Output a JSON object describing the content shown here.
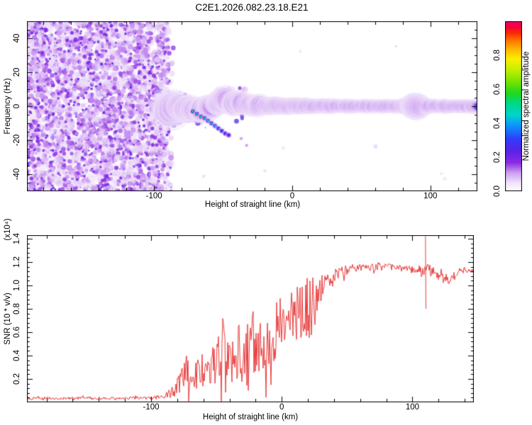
{
  "title": "C2E1.2026.082.23.18.E21",
  "colors": {
    "snr_line": "#e83c3c",
    "axis": "#000000",
    "background": "#ffffff",
    "noise_purple": "#8a2be2"
  },
  "chart_data": [
    {
      "id": "spectrogram",
      "type": "heatmap",
      "title": "C2E1.2026.082.23.18.E21",
      "xlabel": "Height of straight line (km)",
      "ylabel": "Frequency (Hz)",
      "x_range": [
        -192,
        134
      ],
      "y_range": [
        -50,
        50
      ],
      "x_ticks": [
        {
          "v": -100,
          "t": "-100"
        },
        {
          "v": 0,
          "t": "0"
        },
        {
          "v": 100,
          "t": "100"
        }
      ],
      "x_minor_step": 20,
      "y_ticks": [
        {
          "v": 40,
          "t": "40"
        },
        {
          "v": 20,
          "t": "20"
        },
        {
          "v": 0,
          "t": "0"
        },
        {
          "v": -20,
          "t": "-20"
        },
        {
          "v": -40,
          "t": "-40"
        }
      ],
      "y_minor_step": 5,
      "colorbar": {
        "label": "Normalized spectral amplitude",
        "range": [
          0,
          1
        ],
        "ticks": [
          {
            "v": 0.0,
            "t": "0.0"
          },
          {
            "v": 0.2,
            "t": "0.2"
          },
          {
            "v": 0.4,
            "t": "0.4"
          },
          {
            "v": 0.6,
            "t": "0.6"
          },
          {
            "v": 0.8,
            "t": "0.8"
          }
        ],
        "stops": [
          [
            0.0,
            "#ffffff"
          ],
          [
            0.05,
            "#f1e5fb"
          ],
          [
            0.11,
            "#cf9df2"
          ],
          [
            0.17,
            "#8a2be2"
          ],
          [
            0.24,
            "#5b21e8"
          ],
          [
            0.31,
            "#2f3ef8"
          ],
          [
            0.38,
            "#0f8cff"
          ],
          [
            0.45,
            "#00d4cf"
          ],
          [
            0.52,
            "#00d883"
          ],
          [
            0.58,
            "#21d81e"
          ],
          [
            0.65,
            "#7ce400"
          ],
          [
            0.72,
            "#c8ef00"
          ],
          [
            0.78,
            "#fced00"
          ],
          [
            0.84,
            "#ffb300"
          ],
          [
            0.89,
            "#ff7300"
          ],
          [
            0.93,
            "#fb2d00"
          ],
          [
            0.97,
            "#f5003e"
          ],
          [
            1.0,
            "#ef0070"
          ]
        ]
      },
      "noise_region": {
        "x_start_km": -192,
        "x_end_km": -90,
        "description": "uncorrelated purple speckle noise before signal acquisition"
      },
      "signal_band": {
        "center_freq_hz": 0,
        "keypoints": [
          [
            -91,
            -1,
            6.5
          ],
          [
            -88,
            -2.5,
            7
          ],
          [
            -85,
            -1,
            6
          ],
          [
            -82,
            0,
            5.5
          ],
          [
            -79,
            -1,
            5
          ],
          [
            -76,
            -2,
            5
          ],
          [
            -73,
            -1.5,
            5
          ],
          [
            -70,
            -2,
            4.8
          ],
          [
            -67,
            -3,
            4.6
          ],
          [
            -64,
            -2,
            4.6
          ],
          [
            -61,
            -1,
            4.5
          ],
          [
            -58,
            -0.5,
            4.4
          ],
          [
            -55,
            1.5,
            4.4
          ],
          [
            -52,
            3,
            4.5
          ],
          [
            -49,
            4.5,
            4.6
          ],
          [
            -46,
            3,
            4.5
          ],
          [
            -43,
            1,
            4.4
          ],
          [
            -40,
            1.5,
            4.3
          ],
          [
            -37,
            2.5,
            4.4
          ],
          [
            -34,
            1,
            4.2
          ],
          [
            -31,
            0.5,
            4.1
          ],
          [
            -28,
            0,
            4
          ],
          [
            -25,
            1,
            3.9
          ],
          [
            -22,
            0,
            3.8
          ],
          [
            -19,
            0.5,
            3.7
          ],
          [
            -16,
            0,
            3.6
          ],
          [
            -13,
            0.5,
            3.5
          ],
          [
            -10,
            0,
            3.5
          ],
          [
            -7,
            0.3,
            3.4
          ],
          [
            -4,
            0,
            3.4
          ],
          [
            0,
            0.3,
            3.3
          ],
          [
            5,
            0,
            3.2
          ],
          [
            10,
            0.3,
            3.2
          ],
          [
            15,
            0,
            3.1
          ],
          [
            20,
            0.2,
            3
          ],
          [
            25,
            0,
            3
          ],
          [
            30,
            0,
            3
          ],
          [
            36,
            0.2,
            2.9
          ],
          [
            42,
            0,
            2.9
          ],
          [
            48,
            0,
            2.8
          ],
          [
            55,
            0.2,
            2.8
          ],
          [
            62,
            0,
            2.8
          ],
          [
            70,
            0,
            2.8
          ],
          [
            78,
            0,
            2.9
          ],
          [
            84,
            0.3,
            3.4
          ],
          [
            88,
            0,
            5.2
          ],
          [
            91,
            0,
            5.4
          ],
          [
            94,
            0,
            3.6
          ],
          [
            100,
            0,
            2.9
          ],
          [
            108,
            0,
            2.8
          ],
          [
            116,
            0,
            2.8
          ],
          [
            124,
            0,
            2.8
          ],
          [
            134,
            0,
            2.8
          ]
        ]
      },
      "descender": {
        "points": [
          [
            -72,
            -3,
            0.55
          ],
          [
            -69,
            -4.5,
            0.5
          ],
          [
            -66,
            -6,
            0.52
          ],
          [
            -63.5,
            -7,
            0.48
          ],
          [
            -61,
            -8.5,
            0.5
          ],
          [
            -58.5,
            -10,
            0.42
          ],
          [
            -56,
            -11.5,
            0.44
          ],
          [
            -53.5,
            -13,
            0.36
          ],
          [
            -51,
            -14.5,
            0.3
          ],
          [
            -48.5,
            -16,
            0.26
          ],
          [
            -46,
            -17,
            0.22
          ]
        ]
      },
      "faint_dots": [
        [
          -37,
          -19
        ],
        [
          -33,
          -23
        ]
      ],
      "cloud_above": {
        "center_km": -45,
        "center_hz": 8,
        "spread_km": 12,
        "spread_hz": 3
      }
    },
    {
      "id": "snr",
      "type": "line",
      "color": "#e83c3c",
      "xlabel": "Height of straight line (km)",
      "ylabel": "SNR (10 * v/v)",
      "ylabel_scale": "(x10⁴)",
      "x_range": [
        -195,
        147
      ],
      "y_range": [
        0,
        1.43
      ],
      "x_ticks": [
        {
          "v": -100,
          "t": "-100"
        },
        {
          "v": 0,
          "t": "0"
        },
        {
          "v": 100,
          "t": "100"
        }
      ],
      "x_minor_step": 20,
      "y_ticks": [
        {
          "v": 0.2,
          "t": "0.2"
        },
        {
          "v": 0.4,
          "t": "0.4"
        },
        {
          "v": 0.6,
          "t": "0.6"
        },
        {
          "v": 0.8,
          "t": "0.8"
        },
        {
          "v": 1.0,
          "t": "1.0"
        },
        {
          "v": 1.2,
          "t": "1.2"
        },
        {
          "v": 1.4,
          "t": "1.4"
        }
      ],
      "y_minor_step": 0.04,
      "envelope": [
        [
          -195,
          0.035,
          0.012
        ],
        [
          -130,
          0.035,
          0.012
        ],
        [
          -100,
          0.038,
          0.014
        ],
        [
          -92,
          0.045,
          0.02
        ],
        [
          -88,
          0.06,
          0.035
        ],
        [
          -84,
          0.09,
          0.05
        ],
        [
          -80,
          0.13,
          0.08
        ],
        [
          -77,
          0.2,
          0.12
        ],
        [
          -74,
          0.32,
          0.16
        ],
        [
          -71,
          0.24,
          0.14
        ],
        [
          -68,
          0.2,
          0.1
        ],
        [
          -65,
          0.24,
          0.14
        ],
        [
          -62,
          0.28,
          0.16
        ],
        [
          -59,
          0.24,
          0.12
        ],
        [
          -56,
          0.27,
          0.15
        ],
        [
          -53,
          0.3,
          0.17
        ],
        [
          -50,
          0.32,
          0.2
        ],
        [
          -47,
          0.36,
          0.26
        ],
        [
          -44,
          0.44,
          0.34
        ],
        [
          -41,
          0.32,
          0.18
        ],
        [
          -38,
          0.33,
          0.2
        ],
        [
          -35,
          0.36,
          0.24
        ],
        [
          -32,
          0.42,
          0.27
        ],
        [
          -29,
          0.38,
          0.22
        ],
        [
          -26,
          0.44,
          0.26
        ],
        [
          -23,
          0.42,
          0.22
        ],
        [
          -20,
          0.4,
          0.2
        ],
        [
          -17,
          0.44,
          0.24
        ],
        [
          -14,
          0.48,
          0.24
        ],
        [
          -11,
          0.5,
          0.23
        ],
        [
          -8,
          0.52,
          0.2
        ],
        [
          -5,
          0.56,
          0.2
        ],
        [
          -2,
          0.62,
          0.18
        ],
        [
          1,
          0.66,
          0.17
        ],
        [
          4,
          0.71,
          0.15
        ],
        [
          7,
          0.7,
          0.19
        ],
        [
          10,
          0.74,
          0.21
        ],
        [
          13,
          0.78,
          0.24
        ],
        [
          16,
          0.8,
          0.28
        ],
        [
          19,
          0.84,
          0.31
        ],
        [
          22,
          0.84,
          0.3
        ],
        [
          25,
          0.87,
          0.24
        ],
        [
          28,
          0.94,
          0.13
        ],
        [
          31,
          0.99,
          0.1
        ],
        [
          34,
          1.03,
          0.08
        ],
        [
          38,
          1.07,
          0.06
        ],
        [
          42,
          1.1,
          0.05
        ],
        [
          46,
          1.12,
          0.045
        ],
        [
          52,
          1.14,
          0.04
        ],
        [
          60,
          1.15,
          0.035
        ],
        [
          70,
          1.16,
          0.035
        ],
        [
          80,
          1.16,
          0.03
        ],
        [
          88,
          1.15,
          0.03
        ],
        [
          96,
          1.14,
          0.035
        ],
        [
          103,
          1.13,
          0.04
        ],
        [
          108,
          1.12,
          0.05
        ],
        [
          112,
          1.14,
          0.05
        ],
        [
          116,
          1.11,
          0.045
        ],
        [
          120,
          1.09,
          0.045
        ],
        [
          124,
          1.06,
          0.04
        ],
        [
          128,
          1.05,
          0.04
        ],
        [
          131,
          1.09,
          0.035
        ],
        [
          135,
          1.12,
          0.03
        ],
        [
          140,
          1.13,
          0.03
        ],
        [
          147,
          1.13,
          0.03
        ]
      ],
      "spikes": [
        {
          "x": 110,
          "top": 1.42,
          "bottom": 0.8
        }
      ]
    }
  ]
}
